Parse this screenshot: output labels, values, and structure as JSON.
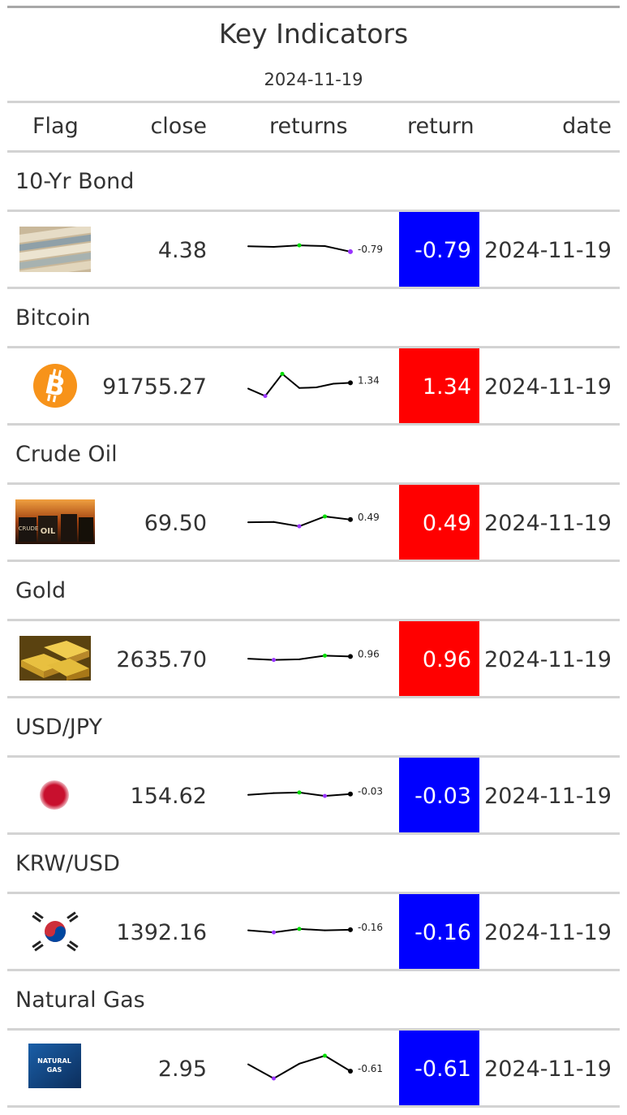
{
  "title": "Key Indicators",
  "subtitle": "2024-11-19",
  "columns": [
    "Flag",
    "close",
    "returns",
    "return",
    "date"
  ],
  "colors": {
    "positive": "#ff0000",
    "negative": "#0000ff",
    "spark_max": "#00dd00",
    "spark_min": "#9933ff"
  },
  "groups": [
    {
      "name": "10-Yr Bond",
      "icon": "treasury-bond-icon",
      "close": "4.38",
      "return": "-0.79",
      "return_value": -0.79,
      "date": "2024-11-19",
      "spark": {
        "values": [
          0.1,
          0.0,
          0.25,
          0.12,
          -0.79
        ],
        "label": "-0.79"
      }
    },
    {
      "name": "Bitcoin",
      "icon": "bitcoin-icon",
      "close": "91755.27",
      "return": "1.34",
      "return_value": 1.34,
      "date": "2024-11-19",
      "spark": {
        "values": [
          0.4,
          -0.8,
          2.8,
          0.5,
          0.6,
          1.2,
          1.34
        ],
        "label": "1.34"
      }
    },
    {
      "name": "Crude Oil",
      "icon": "crude-oil-icon",
      "close": "69.50",
      "return": "0.49",
      "return_value": 0.49,
      "date": "2024-11-19",
      "spark": {
        "values": [
          0.05,
          0.1,
          -0.6,
          1.0,
          0.49
        ],
        "label": "0.49"
      }
    },
    {
      "name": "Gold",
      "icon": "gold-bars-icon",
      "close": "2635.70",
      "return": "0.96",
      "return_value": 0.96,
      "date": "2024-11-19",
      "spark": {
        "values": [
          0.6,
          0.4,
          0.5,
          1.1,
          0.96
        ],
        "label": "0.96"
      }
    },
    {
      "name": "USD/JPY",
      "icon": "japan-flag-icon",
      "close": "154.62",
      "return": "-0.03",
      "return_value": -0.03,
      "date": "2024-11-19",
      "spark": {
        "values": [
          -0.1,
          0.05,
          0.1,
          -0.2,
          -0.03
        ],
        "label": "-0.03"
      }
    },
    {
      "name": "KRW/USD",
      "icon": "south-korea-flag-icon",
      "close": "1392.16",
      "return": "-0.16",
      "return_value": -0.16,
      "date": "2024-11-19",
      "spark": {
        "values": [
          -0.2,
          -0.35,
          -0.1,
          -0.2,
          -0.16
        ],
        "label": "-0.16"
      }
    },
    {
      "name": "Natural Gas",
      "icon": "natural-gas-icon",
      "icon_text": [
        "NATURAL",
        "GAS"
      ],
      "close": "2.95",
      "return": "-0.61",
      "return_value": -0.61,
      "date": "2024-11-19",
      "spark": {
        "values": [
          0.5,
          -1.8,
          0.6,
          1.9,
          -0.61
        ],
        "label": "-0.61"
      }
    }
  ]
}
